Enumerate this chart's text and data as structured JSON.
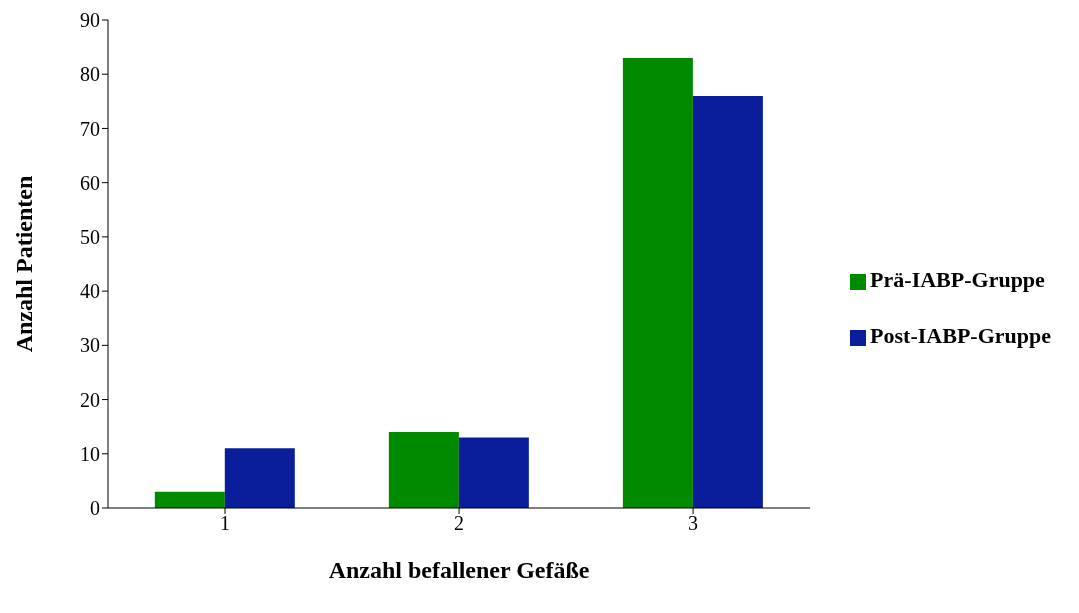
{
  "chart_data": {
    "type": "bar",
    "xlabel": "Anzahl befallener Gefäße",
    "ylabel": "Anzahl Patienten",
    "categories": [
      "1",
      "2",
      "3"
    ],
    "series": [
      {
        "name": "Prä-IABP-Gruppe",
        "color": "#008a00",
        "values": [
          3,
          14,
          83
        ]
      },
      {
        "name": "Post-IABP-Gruppe",
        "color": "#0a1e9c",
        "values": [
          11,
          13,
          76
        ]
      }
    ],
    "ylim": [
      0,
      90
    ],
    "yticks": [
      0,
      10,
      20,
      30,
      40,
      50,
      60,
      70,
      80,
      90
    ],
    "legend": "right"
  }
}
